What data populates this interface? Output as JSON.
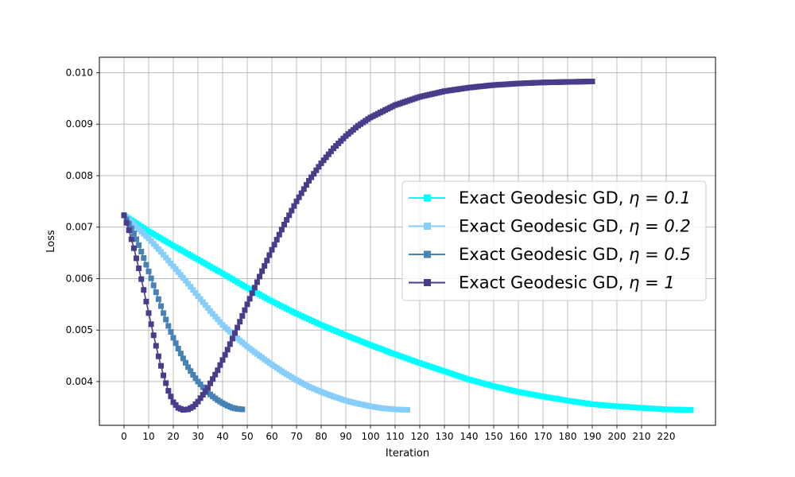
{
  "chart_data": {
    "type": "line",
    "xlabel": "Iteration",
    "ylabel": "Loss",
    "xlim": [
      -10,
      240
    ],
    "ylim": [
      0.00315,
      0.0103
    ],
    "x_ticks": [
      0,
      10,
      20,
      30,
      40,
      50,
      60,
      70,
      80,
      90,
      100,
      110,
      120,
      130,
      140,
      150,
      160,
      170,
      180,
      190,
      200,
      210,
      220
    ],
    "y_ticks": [
      0.004,
      0.005,
      0.006,
      0.007,
      0.008,
      0.009,
      0.01
    ],
    "y_tick_labels": [
      "0.004",
      "0.005",
      "0.006",
      "0.007",
      "0.008",
      "0.009",
      "0.010"
    ],
    "grid": true,
    "legend_position": "center-right",
    "marker": "square",
    "series": [
      {
        "name_prefix": "Exact Geodesic GD, ",
        "name_math": "η = 0.1",
        "color": "#00FFFF",
        "x": [
          0,
          10,
          20,
          30,
          40,
          50,
          60,
          70,
          80,
          90,
          100,
          110,
          120,
          130,
          140,
          150,
          160,
          170,
          180,
          190,
          200,
          210,
          220,
          230
        ],
        "y": [
          0.00723,
          0.00692,
          0.00664,
          0.00637,
          0.0061,
          0.00582,
          0.00556,
          0.00532,
          0.0051,
          0.0049,
          0.00471,
          0.00453,
          0.00436,
          0.0042,
          0.00404,
          0.00391,
          0.0038,
          0.00371,
          0.00363,
          0.00356,
          0.00352,
          0.00349,
          0.00346,
          0.00345
        ]
      },
      {
        "name_prefix": "Exact Geodesic GD, ",
        "name_math": "η = 0.2",
        "color": "#87CEFA",
        "x": [
          0,
          5,
          10,
          15,
          20,
          25,
          30,
          35,
          40,
          45,
          50,
          55,
          60,
          65,
          70,
          75,
          80,
          85,
          90,
          95,
          100,
          105,
          110,
          115
        ],
        "y": [
          0.00723,
          0.007,
          0.00678,
          0.00652,
          0.00624,
          0.00596,
          0.00566,
          0.00537,
          0.0051,
          0.00488,
          0.00468,
          0.0045,
          0.00433,
          0.00417,
          0.00403,
          0.0039,
          0.0038,
          0.00371,
          0.00363,
          0.00357,
          0.00352,
          0.00348,
          0.00346,
          0.00345
        ]
      },
      {
        "name_prefix": "Exact Geodesic GD, ",
        "name_math": "η = 0.5",
        "color": "#4682B4",
        "x": [
          0,
          2,
          4,
          6,
          8,
          10,
          12,
          14,
          16,
          18,
          20,
          22,
          24,
          26,
          28,
          30,
          32,
          34,
          36,
          38,
          40,
          42,
          44,
          46,
          48
        ],
        "y": [
          0.00723,
          0.00707,
          0.00688,
          0.00665,
          0.0064,
          0.00614,
          0.00587,
          0.0056,
          0.00533,
          0.00508,
          0.00485,
          0.00464,
          0.00445,
          0.00428,
          0.00413,
          0.004,
          0.00389,
          0.00379,
          0.00371,
          0.00364,
          0.00358,
          0.00353,
          0.00349,
          0.00347,
          0.00346
        ]
      },
      {
        "name_prefix": "Exact Geodesic GD, ",
        "name_math": "η = 1",
        "color": "#483D8B",
        "x": [
          0,
          2,
          4,
          6,
          8,
          10,
          12,
          14,
          16,
          18,
          20,
          22,
          24,
          26,
          28,
          30,
          34,
          38,
          42,
          46,
          50,
          55,
          60,
          65,
          70,
          75,
          80,
          85,
          90,
          95,
          100,
          110,
          120,
          130,
          140,
          150,
          160,
          170,
          180,
          190
        ],
        "y": [
          0.00723,
          0.00694,
          0.00659,
          0.0062,
          0.00578,
          0.00533,
          0.0049,
          0.00449,
          0.00412,
          0.00382,
          0.0036,
          0.00349,
          0.00345,
          0.00346,
          0.00351,
          0.00361,
          0.00388,
          0.00422,
          0.00462,
          0.00505,
          0.0055,
          0.00604,
          0.00656,
          0.00705,
          0.0075,
          0.0079,
          0.00824,
          0.00853,
          0.00877,
          0.00897,
          0.00913,
          0.00937,
          0.00953,
          0.00964,
          0.00971,
          0.00976,
          0.00979,
          0.00981,
          0.00982,
          0.00983
        ]
      }
    ]
  }
}
